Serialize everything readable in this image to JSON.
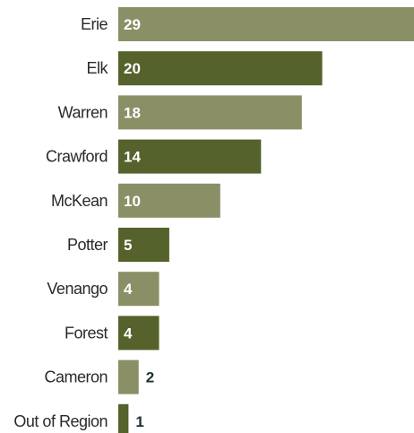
{
  "chart_data": {
    "type": "bar",
    "orientation": "horizontal",
    "title": "",
    "xlabel": "",
    "ylabel": "",
    "categories": [
      "Erie",
      "Elk",
      "Warren",
      "Crawford",
      "McKean",
      "Potter",
      "Venango",
      "Forest",
      "Cameron",
      "Out of Region"
    ],
    "values": [
      29,
      20,
      18,
      14,
      10,
      5,
      4,
      4,
      2,
      1
    ],
    "xlim": [
      0,
      29
    ],
    "grid": false,
    "legend": "none",
    "colors": {
      "light": "#8b8f66",
      "dark": "#55622b",
      "label_inside": "#ffffff",
      "label_outside": "#1f2f2f"
    }
  }
}
